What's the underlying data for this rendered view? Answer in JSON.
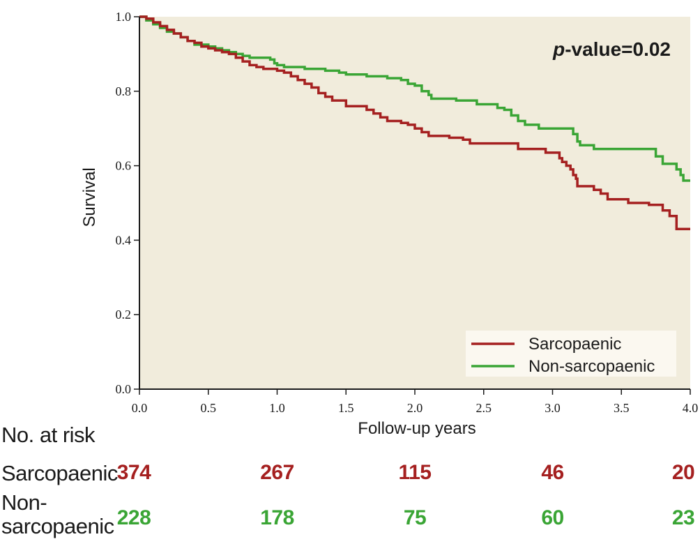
{
  "chart_data": {
    "type": "line",
    "xlabel": "Follow-up years",
    "ylabel": "Survival",
    "xlim": [
      0,
      4
    ],
    "ylim": [
      0,
      1
    ],
    "x_ticks": [
      "0.0",
      "0.5",
      "1.0",
      "1.5",
      "2.0",
      "2.5",
      "3.0",
      "3.5",
      "4.0"
    ],
    "y_ticks": [
      "0.0",
      "0.2",
      "0.4",
      "0.6",
      "0.8",
      "1.0"
    ],
    "annotation": {
      "italic": "p",
      "rest": "-value=0.02"
    },
    "legend_position": "bottom-right",
    "plot_background": "#f1ecdc",
    "series": [
      {
        "name": "Sarcopaenic",
        "color": "#a52020",
        "steps": [
          [
            0,
            1.0
          ],
          [
            0.05,
            0.995
          ],
          [
            0.1,
            0.985
          ],
          [
            0.15,
            0.975
          ],
          [
            0.2,
            0.965
          ],
          [
            0.25,
            0.955
          ],
          [
            0.3,
            0.945
          ],
          [
            0.35,
            0.935
          ],
          [
            0.4,
            0.93
          ],
          [
            0.45,
            0.92
          ],
          [
            0.5,
            0.915
          ],
          [
            0.55,
            0.91
          ],
          [
            0.6,
            0.905
          ],
          [
            0.65,
            0.9
          ],
          [
            0.7,
            0.89
          ],
          [
            0.75,
            0.88
          ],
          [
            0.8,
            0.87
          ],
          [
            0.85,
            0.865
          ],
          [
            0.9,
            0.86
          ],
          [
            1.0,
            0.855
          ],
          [
            1.05,
            0.85
          ],
          [
            1.1,
            0.84
          ],
          [
            1.15,
            0.83
          ],
          [
            1.2,
            0.82
          ],
          [
            1.25,
            0.81
          ],
          [
            1.3,
            0.795
          ],
          [
            1.35,
            0.785
          ],
          [
            1.4,
            0.775
          ],
          [
            1.5,
            0.76
          ],
          [
            1.65,
            0.75
          ],
          [
            1.7,
            0.74
          ],
          [
            1.75,
            0.73
          ],
          [
            1.8,
            0.72
          ],
          [
            1.9,
            0.715
          ],
          [
            1.95,
            0.71
          ],
          [
            2.0,
            0.7
          ],
          [
            2.05,
            0.69
          ],
          [
            2.1,
            0.68
          ],
          [
            2.25,
            0.675
          ],
          [
            2.35,
            0.67
          ],
          [
            2.4,
            0.66
          ],
          [
            2.75,
            0.645
          ],
          [
            2.95,
            0.635
          ],
          [
            3.05,
            0.62
          ],
          [
            3.07,
            0.61
          ],
          [
            3.1,
            0.6
          ],
          [
            3.13,
            0.59
          ],
          [
            3.15,
            0.575
          ],
          [
            3.17,
            0.565
          ],
          [
            3.18,
            0.545
          ],
          [
            3.3,
            0.535
          ],
          [
            3.35,
            0.525
          ],
          [
            3.4,
            0.51
          ],
          [
            3.55,
            0.5
          ],
          [
            3.7,
            0.495
          ],
          [
            3.8,
            0.48
          ],
          [
            3.85,
            0.465
          ],
          [
            3.9,
            0.43
          ],
          [
            4.0,
            0.43
          ]
        ]
      },
      {
        "name": "Non-sarcopaenic",
        "color": "#3aa535",
        "steps": [
          [
            0,
            1.0
          ],
          [
            0.05,
            0.99
          ],
          [
            0.1,
            0.98
          ],
          [
            0.15,
            0.97
          ],
          [
            0.2,
            0.96
          ],
          [
            0.25,
            0.955
          ],
          [
            0.3,
            0.945
          ],
          [
            0.35,
            0.935
          ],
          [
            0.4,
            0.925
          ],
          [
            0.5,
            0.92
          ],
          [
            0.55,
            0.915
          ],
          [
            0.6,
            0.91
          ],
          [
            0.65,
            0.905
          ],
          [
            0.7,
            0.9
          ],
          [
            0.75,
            0.895
          ],
          [
            0.8,
            0.89
          ],
          [
            0.95,
            0.885
          ],
          [
            0.98,
            0.875
          ],
          [
            1.0,
            0.87
          ],
          [
            1.05,
            0.865
          ],
          [
            1.2,
            0.86
          ],
          [
            1.35,
            0.855
          ],
          [
            1.45,
            0.85
          ],
          [
            1.5,
            0.845
          ],
          [
            1.65,
            0.84
          ],
          [
            1.8,
            0.835
          ],
          [
            1.9,
            0.83
          ],
          [
            1.95,
            0.82
          ],
          [
            2.0,
            0.815
          ],
          [
            2.05,
            0.8
          ],
          [
            2.1,
            0.79
          ],
          [
            2.12,
            0.78
          ],
          [
            2.3,
            0.775
          ],
          [
            2.45,
            0.765
          ],
          [
            2.6,
            0.755
          ],
          [
            2.65,
            0.75
          ],
          [
            2.7,
            0.735
          ],
          [
            2.75,
            0.72
          ],
          [
            2.8,
            0.71
          ],
          [
            2.9,
            0.7
          ],
          [
            3.15,
            0.685
          ],
          [
            3.18,
            0.665
          ],
          [
            3.2,
            0.655
          ],
          [
            3.3,
            0.645
          ],
          [
            3.75,
            0.625
          ],
          [
            3.8,
            0.605
          ],
          [
            3.9,
            0.59
          ],
          [
            3.93,
            0.575
          ],
          [
            3.95,
            0.56
          ],
          [
            4.0,
            0.56
          ]
        ]
      }
    ],
    "risk_table": {
      "title": "No. at risk",
      "time_points": [
        0,
        1,
        2,
        3,
        4
      ],
      "rows": [
        {
          "label_lines": [
            "Sarcopaenic"
          ],
          "color": "#a52020",
          "values": [
            "374",
            "267",
            "115",
            "46",
            "20"
          ]
        },
        {
          "label_lines": [
            "Non-",
            "sarcopaenic"
          ],
          "color": "#3aa535",
          "values": [
            "228",
            "178",
            "75",
            "60",
            "23"
          ]
        }
      ]
    }
  }
}
